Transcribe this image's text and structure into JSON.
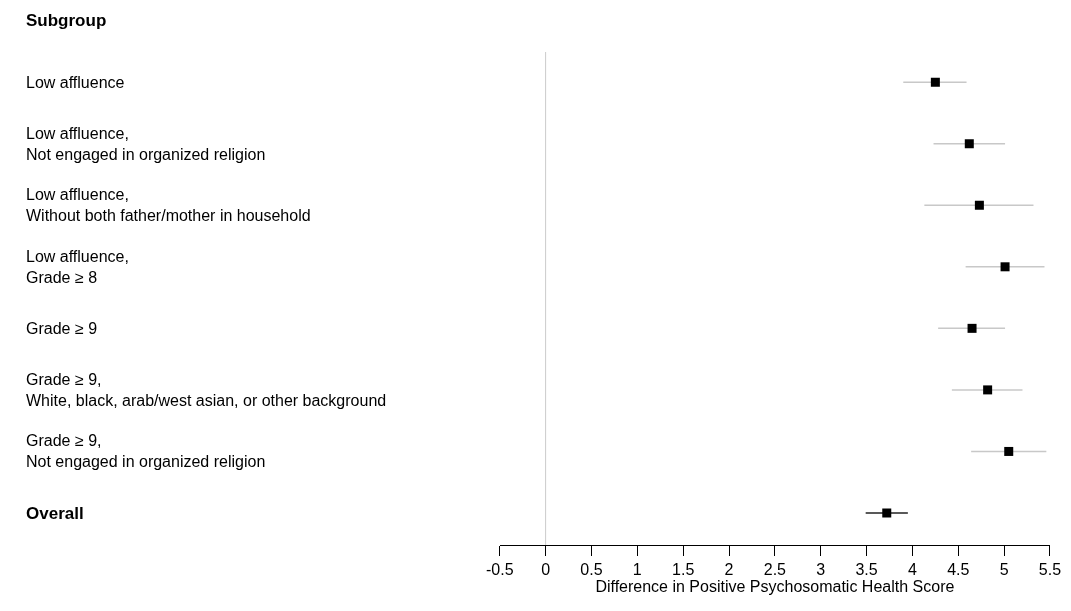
{
  "chart_data": {
    "type": "scatter",
    "orientation": "horizontal",
    "title": "Subgroup",
    "categories": [
      "Low affluence",
      "Low affluence,\nNot engaged in organized religion",
      "Low affluence,\nWithout both father/mother in household",
      "Low affluence,\nGrade ≥ 8",
      "Grade ≥ 9",
      "Grade ≥ 9,\nWhite, black, arab/west asian, or other background",
      "Grade ≥ 9,\nNot engaged in organized religion",
      "Overall"
    ],
    "series": [
      {
        "color": "#000000",
        "values": [
          4.25,
          4.62,
          4.73,
          5.01,
          4.65,
          4.82,
          5.05,
          3.72
        ],
        "errors": [
          [
            3.9,
            4.59
          ],
          [
            4.23,
            5.01
          ],
          [
            4.13,
            5.32
          ],
          [
            4.58,
            5.44
          ],
          [
            4.28,
            5.01
          ],
          [
            4.43,
            5.2
          ],
          [
            4.64,
            5.46
          ],
          [
            3.49,
            3.95
          ]
        ]
      }
    ],
    "xlabel": "Difference in Positive Psychosomatic Health Score",
    "xlim": [
      -0.5,
      5.5
    ],
    "xticks": [
      -0.5,
      0,
      0.5,
      1,
      1.5,
      2,
      2.5,
      3,
      3.5,
      4,
      4.5,
      5,
      5.5
    ],
    "ref_lines": [
      {
        "axis": "x",
        "value": 0,
        "color": "#cccccc"
      }
    ],
    "marker": "square",
    "grid": false
  }
}
